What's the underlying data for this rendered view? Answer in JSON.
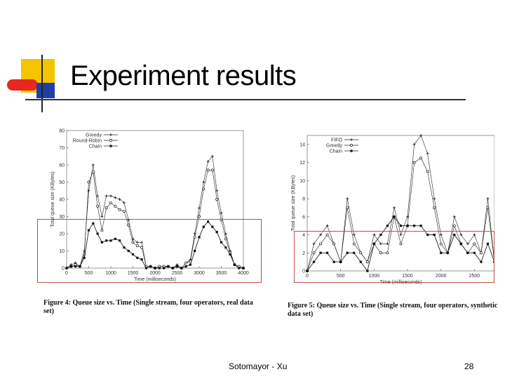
{
  "slide": {
    "title": "Experiment results",
    "footer_author": "Sotomayor - Xu",
    "page_number": "28",
    "caption_left": "Figure 4: Queue size vs. Time (Single stream, four operators, real data set)",
    "caption_right": "Figure 5: Queue size vs. Time (Single stream, four operators, synthetic data set)"
  },
  "colors": {
    "logo_yellow": "#f5c400",
    "logo_red": "#e8281e",
    "logo_blue": "#1f3fa8",
    "highlight_box": "#c0504d",
    "series_line": "#222222"
  },
  "chart_data": [
    {
      "type": "line",
      "ylabel": "Total queue size (KBytes)",
      "xlabel": "Time (milliseconds)",
      "xlim": [
        0,
        4000
      ],
      "ylim": [
        0,
        80
      ],
      "x_ticks": [
        0,
        500,
        1000,
        1500,
        2000,
        2500,
        3000,
        3500,
        4000
      ],
      "y_ticks": [
        0,
        10,
        20,
        30,
        40,
        50,
        60,
        70,
        80
      ],
      "legend_position": "top-left",
      "x": [
        0,
        100,
        200,
        300,
        400,
        500,
        600,
        700,
        800,
        900,
        1000,
        1100,
        1200,
        1300,
        1400,
        1500,
        1600,
        1700,
        1800,
        1900,
        2000,
        2100,
        2200,
        2300,
        2400,
        2500,
        2600,
        2700,
        2800,
        2900,
        3000,
        3100,
        3200,
        3300,
        3400,
        3500,
        3600,
        3700,
        3800,
        3900,
        4000
      ],
      "series": [
        {
          "name": "Greedy",
          "marker": "plus",
          "values": [
            0,
            2,
            3,
            1,
            10,
            45,
            60,
            42,
            30,
            42,
            42,
            41,
            40,
            38,
            28,
            17,
            15,
            15,
            1,
            1,
            0,
            1,
            1,
            1,
            0,
            2,
            0,
            3,
            5,
            20,
            35,
            50,
            62,
            65,
            45,
            32,
            20,
            10,
            2,
            1,
            0
          ]
        },
        {
          "name": "Round-Robin",
          "marker": "circle",
          "values": [
            0,
            1,
            2,
            1,
            8,
            50,
            56,
            36,
            22,
            35,
            38,
            36,
            34,
            33,
            25,
            15,
            13,
            12,
            1,
            1,
            0,
            1,
            1,
            1,
            0,
            1,
            0,
            3,
            4,
            18,
            30,
            46,
            57,
            57,
            40,
            28,
            17,
            9,
            2,
            1,
            0
          ]
        },
        {
          "name": "Chain",
          "marker": "square",
          "values": [
            0,
            1,
            1,
            1,
            6,
            22,
            26,
            20,
            15,
            16,
            16,
            17,
            16,
            12,
            10,
            8,
            6,
            5,
            0,
            1,
            0,
            0,
            0,
            1,
            0,
            1,
            0,
            1,
            2,
            10,
            18,
            24,
            27,
            24,
            21,
            15,
            12,
            8,
            2,
            0,
            0
          ]
        }
      ]
    },
    {
      "type": "line",
      "ylabel": "Total queue size (KBytes)",
      "xlabel": "Time (milliseconds)",
      "xlim": [
        0,
        2800
      ],
      "ylim": [
        0,
        15
      ],
      "x_ticks": [
        0,
        500,
        1000,
        1500,
        2000,
        2500
      ],
      "y_ticks": [
        0,
        2,
        4,
        6,
        8,
        10,
        12,
        14
      ],
      "legend_position": "top-left",
      "x": [
        0,
        100,
        200,
        300,
        400,
        500,
        600,
        700,
        800,
        900,
        1000,
        1100,
        1200,
        1300,
        1400,
        1500,
        1600,
        1700,
        1800,
        1900,
        2000,
        2100,
        2200,
        2300,
        2400,
        2500,
        2600,
        2700,
        2800
      ],
      "series": [
        {
          "name": "FIFO",
          "marker": "plus",
          "values": [
            0,
            3,
            4,
            5,
            3,
            1,
            8,
            4,
            2,
            1,
            4,
            3,
            3,
            7,
            4,
            6,
            14,
            15,
            13,
            8,
            4,
            2,
            6,
            4,
            3,
            4,
            2,
            8,
            1
          ]
        },
        {
          "name": "Greedy",
          "marker": "circle",
          "values": [
            0,
            2,
            3,
            4,
            3,
            1,
            7,
            3,
            2,
            1,
            3,
            2,
            2,
            6,
            3,
            5,
            12,
            12.5,
            11,
            7,
            3,
            2,
            5,
            3,
            2,
            3,
            2,
            7,
            1
          ]
        },
        {
          "name": "Chain",
          "marker": "square",
          "values": [
            0,
            1,
            2,
            2,
            1,
            1,
            2,
            2,
            1,
            0,
            3,
            4,
            5,
            6,
            5,
            5,
            5,
            5,
            4,
            4,
            2,
            2,
            4,
            3,
            2,
            2,
            1,
            3,
            1
          ]
        }
      ]
    }
  ]
}
